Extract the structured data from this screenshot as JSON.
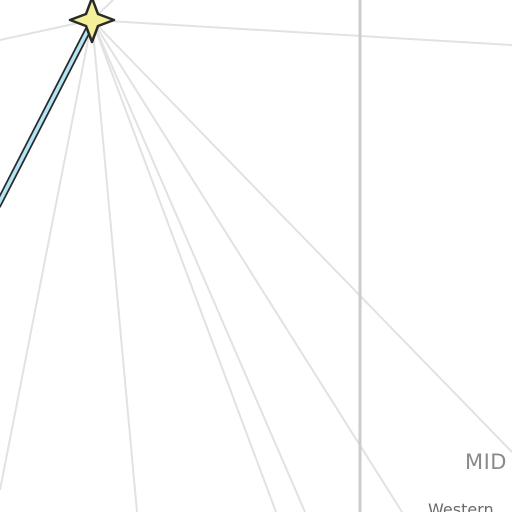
{
  "map": {
    "region_label": "MID",
    "place_label": "Western",
    "colors": {
      "background": "#ffffff",
      "connection_line": "#e2e2e2",
      "boundary_line": "#cccccc",
      "route_fill": "#b3e5f5",
      "route_outline": "#2a2a2a",
      "marker_fill": "#f5ef9a",
      "marker_outline": "#2a2a2a"
    },
    "marker": {
      "icon": "four-point-star-icon"
    }
  }
}
